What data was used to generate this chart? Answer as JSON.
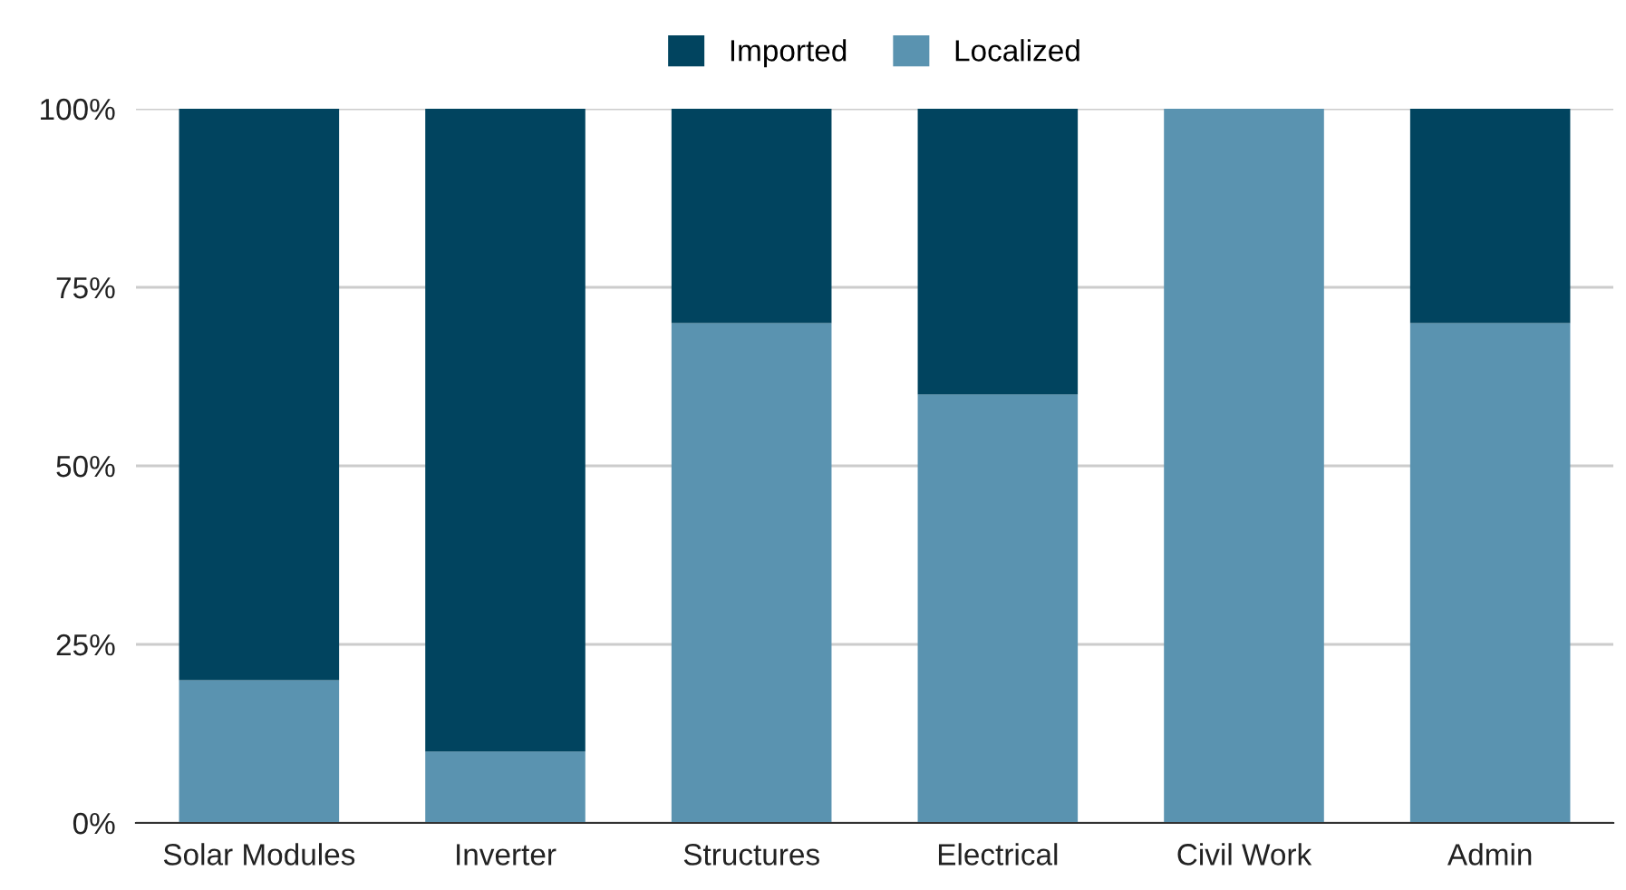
{
  "chart_data": {
    "type": "bar",
    "stacked": true,
    "categories": [
      "Solar Modules",
      "Inverter",
      "Structures",
      "Electrical",
      "Civil Work",
      "Admin"
    ],
    "series": [
      {
        "name": "Localized",
        "color": "#5a93b0",
        "values": [
          20,
          10,
          70,
          60,
          100,
          70
        ]
      },
      {
        "name": "Imported",
        "color": "#01445f",
        "values": [
          80,
          90,
          30,
          40,
          0,
          30
        ]
      }
    ],
    "ylim": [
      0,
      100
    ],
    "yticks": [
      {
        "value": 0,
        "label": "0%"
      },
      {
        "value": 25,
        "label": "25%"
      },
      {
        "value": 50,
        "label": "50%"
      },
      {
        "value": 75,
        "label": "75%"
      },
      {
        "value": 100,
        "label": "100%"
      }
    ],
    "grid": "y",
    "legend": "top"
  }
}
